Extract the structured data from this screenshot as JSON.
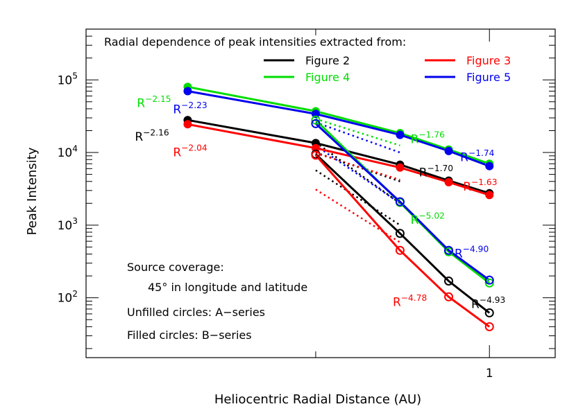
{
  "chart_data": {
    "type": "line",
    "xlabel": "Heliocentric Radial Distance (AU)",
    "ylabel": "Peak Intensity",
    "x_scale": "log",
    "y_scale": "log",
    "xlim": [
      0.2,
      1.3
    ],
    "ylim": [
      15,
      500000
    ],
    "x_ticks": [
      {
        "value": 1,
        "label": "1"
      }
    ],
    "y_ticks": [
      {
        "value": 100,
        "label": "10",
        "exp": "2"
      },
      {
        "value": 1000,
        "label": "10",
        "exp": "3"
      },
      {
        "value": 10000,
        "label": "10",
        "exp": "4"
      },
      {
        "value": 100000,
        "label": "10",
        "exp": "5"
      }
    ],
    "legend_title": "Radial dependence of peak intensities extracted from:",
    "legend": [
      {
        "name": "Figure 2",
        "color": "#000000"
      },
      {
        "name": "Figure 3",
        "color": "#ff0000"
      },
      {
        "name": "Figure 4",
        "color": "#00dd00"
      },
      {
        "name": "Figure 5",
        "color": "#0000ee"
      }
    ],
    "notes": [
      "Source coverage:",
      "45° in longitude and latitude",
      "Unfilled circles: A−series",
      "Filled circles: B−series"
    ],
    "series": [
      {
        "name": "Figure 2",
        "color": "#000000",
        "marker": "filled",
        "x": [
          0.3,
          0.5,
          0.7,
          0.85,
          1.0
        ],
        "y": [
          28000,
          13500,
          6800,
          4100,
          2750
        ],
        "fit_label": "R",
        "fit_exp": "−1.70",
        "label_at": [
          0.755,
          4700
        ]
      },
      {
        "name": "Figure 3",
        "color": "#ff0000",
        "marker": "filled",
        "x": [
          0.3,
          0.5,
          0.7,
          0.85,
          1.0
        ],
        "y": [
          24500,
          11500,
          6200,
          3900,
          2600
        ],
        "fit_label": "R",
        "fit_exp": "−1.63",
        "label_at": [
          0.9,
          3000
        ]
      },
      {
        "name": "Figure 4",
        "color": "#00dd00",
        "marker": "filled",
        "x": [
          0.3,
          0.5,
          0.7,
          0.85,
          1.0
        ],
        "y": [
          80000,
          37000,
          18500,
          11000,
          7000
        ],
        "fit_label": "R",
        "fit_exp": "−1.76",
        "label_at": [
          0.73,
          13500
        ]
      },
      {
        "name": "Figure 5",
        "color": "#0000ee",
        "marker": "filled",
        "x": [
          0.3,
          0.5,
          0.7,
          0.85,
          1.0
        ],
        "y": [
          70000,
          34000,
          17500,
          10500,
          6500
        ],
        "fit_label": "R",
        "fit_exp": "−1.74",
        "label_at": [
          0.89,
          7600
        ]
      },
      {
        "name": "Figure 2",
        "color": "#000000",
        "marker": "open",
        "x": [
          0.5,
          0.7,
          0.85,
          1.0
        ],
        "y": [
          9500,
          770,
          170,
          62
        ],
        "fit_label": "R",
        "fit_exp": "−4.93",
        "label_at": [
          0.93,
          72
        ]
      },
      {
        "name": "Figure 3",
        "color": "#ff0000",
        "marker": "open",
        "x": [
          0.5,
          0.7,
          0.85,
          1.0
        ],
        "y": [
          9200,
          450,
          103,
          40
        ],
        "fit_label": "R",
        "fit_exp": "−4.78",
        "label_at": [
          0.68,
          77
        ]
      },
      {
        "name": "Figure 4",
        "color": "#00dd00",
        "marker": "open",
        "x": [
          0.5,
          0.7,
          0.85,
          1.0
        ],
        "y": [
          28000,
          2050,
          430,
          160
        ],
        "fit_label": "R",
        "fit_exp": "−5.02",
        "label_at": [
          0.73,
          1040
        ]
      },
      {
        "name": "Figure 5",
        "color": "#0000ee",
        "marker": "open",
        "x": [
          0.5,
          0.7,
          0.85,
          1.0
        ],
        "y": [
          25000,
          2100,
          450,
          175
        ],
        "fit_label": "R",
        "fit_exp": "−4.90",
        "label_at": [
          0.87,
          360
        ]
      }
    ],
    "left_labels": [
      {
        "color": "#00dd00",
        "text": "R",
        "exp": "−2.15",
        "at": [
          0.245,
          42000
        ]
      },
      {
        "color": "#0000ee",
        "text": "R",
        "exp": "−2.23",
        "at": [
          0.283,
          34500
        ]
      },
      {
        "color": "#000000",
        "text": "R",
        "exp": "−2.16",
        "at": [
          0.243,
          14500
        ]
      },
      {
        "color": "#ff0000",
        "text": "R",
        "exp": "−2.04",
        "at": [
          0.283,
          8900
        ]
      }
    ],
    "extrapolations": [
      {
        "color": "#00dd00",
        "x": [
          0.5,
          0.7
        ],
        "y": [
          29000,
          12500
        ]
      },
      {
        "color": "#0000ee",
        "x": [
          0.5,
          0.7
        ],
        "y": [
          26000,
          10000
        ]
      },
      {
        "color": "#000000",
        "x": [
          0.5,
          0.7
        ],
        "y": [
          10000,
          4000
        ]
      },
      {
        "color": "#ff0000",
        "x": [
          0.5,
          0.7
        ],
        "y": [
          9800,
          4200
        ]
      },
      {
        "color": "#000000",
        "x": [
          0.5,
          0.7
        ],
        "y": [
          5700,
          1000
        ]
      },
      {
        "color": "#ff0000",
        "x": [
          0.5,
          0.7
        ],
        "y": [
          3100,
          580
        ]
      },
      {
        "color": "#000000",
        "x": [
          0.5,
          0.7
        ],
        "y": [
          13800,
          2000
        ]
      },
      {
        "color": "#0000ee",
        "x": [
          0.5,
          0.7
        ],
        "y": [
          12500,
          2000
        ]
      }
    ]
  }
}
